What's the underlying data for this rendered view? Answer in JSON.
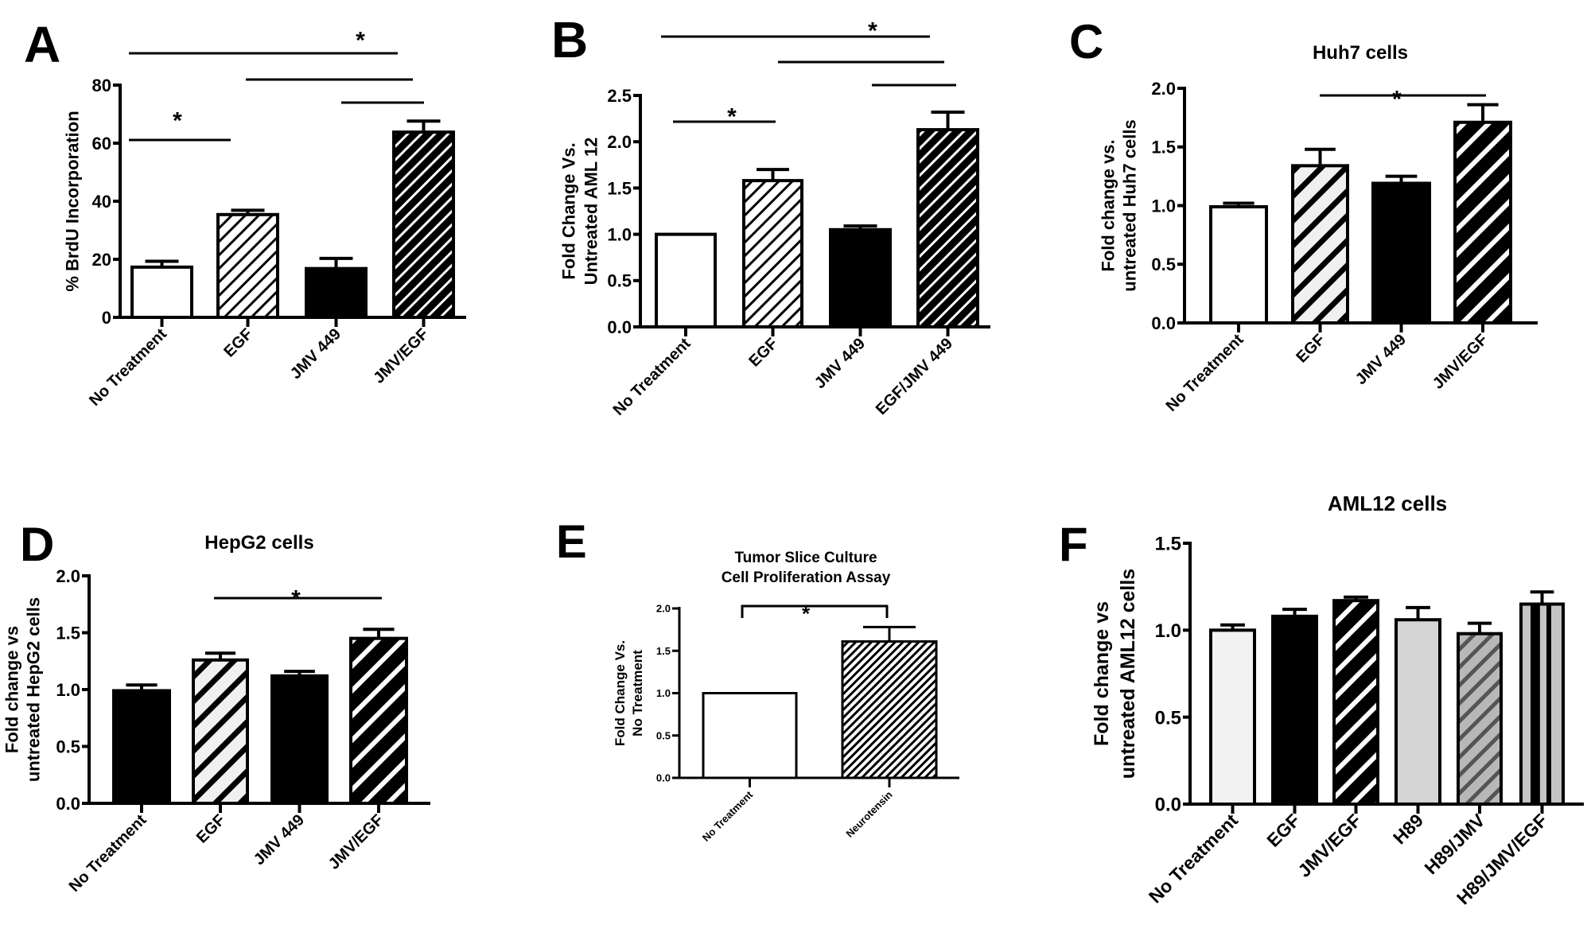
{
  "chart_data": [
    {
      "id": "A",
      "panel_label": "A",
      "type": "bar",
      "title": "",
      "ylabel": [
        "% BrdU Incorporation"
      ],
      "ylim": [
        0,
        80
      ],
      "yticks": [
        "0",
        "20",
        "40",
        "60",
        "80"
      ],
      "ytick_values": [
        0,
        20,
        40,
        60,
        80
      ],
      "categories": [
        "No Treatment",
        "EGF",
        "JMV 449",
        "JMV/EGF"
      ],
      "values": [
        17.3,
        35.4,
        16.8,
        63.8
      ],
      "errors_upper": [
        19.3,
        36.9,
        20.3,
        67.6
      ],
      "fills": [
        "white",
        "hatch-light",
        "black",
        "hatch-dark"
      ],
      "comparisons": [
        {
          "from": "No Treatment",
          "to": "JMV/EGF",
          "label": "*"
        },
        {
          "from": "EGF",
          "to": "JMV/EGF",
          "label": ""
        },
        {
          "from": "JMV 449",
          "to": "JMV/EGF",
          "label": ""
        },
        {
          "from": "No Treatment",
          "to": "EGF",
          "label": "*"
        }
      ]
    },
    {
      "id": "B",
      "panel_label": "B",
      "type": "bar",
      "title": "",
      "ylabel": [
        "Fold Change Vs.",
        "Untreated AML 12"
      ],
      "ylim": [
        0,
        2.5
      ],
      "yticks": [
        "0.0",
        "0.5",
        "1.0",
        "1.5",
        "2.0",
        "2.5"
      ],
      "ytick_values": [
        0,
        0.5,
        1,
        1.5,
        2,
        2.5
      ],
      "categories": [
        "No Treatment",
        "EGF",
        "JMV 449",
        "EGF/JMV 449"
      ],
      "values": [
        1.0,
        1.58,
        1.05,
        2.13
      ],
      "errors_upper": [
        1.0,
        1.7,
        1.09,
        2.32
      ],
      "fills": [
        "white",
        "hatch-light",
        "black",
        "hatch-dark"
      ],
      "comparisons": [
        {
          "from": "No Treatment",
          "to": "EGF/JMV 449",
          "label": "*"
        },
        {
          "from": "EGF",
          "to": "EGF/JMV 449",
          "label": ""
        },
        {
          "from": "JMV 449",
          "to": "EGF/JMV 449",
          "label": ""
        },
        {
          "from": "No Treatment",
          "to": "EGF",
          "label": "*"
        }
      ]
    },
    {
      "id": "C",
      "panel_label": "C",
      "type": "bar",
      "title": "Huh7 cells",
      "ylabel": [
        "Fold change vs.",
        "untreated Huh7 cells"
      ],
      "ylim": [
        0,
        2.0
      ],
      "yticks": [
        "0.0",
        "0.5",
        "1.0",
        "1.5",
        "2.0"
      ],
      "ytick_values": [
        0,
        0.5,
        1,
        1.5,
        2
      ],
      "categories": [
        "No Treatment",
        "EGF",
        "JMV 449",
        "JMV/EGF"
      ],
      "values": [
        0.99,
        1.34,
        1.19,
        1.71
      ],
      "errors_upper": [
        1.02,
        1.48,
        1.25,
        1.86
      ],
      "fills": [
        "white",
        "stripe-light",
        "black",
        "stripe-bold"
      ],
      "comparisons": [
        {
          "from": "EGF",
          "to": "JMV/EGF",
          "label": "*"
        }
      ]
    },
    {
      "id": "D",
      "panel_label": "D",
      "type": "bar",
      "title": "HepG2 cells",
      "ylabel": [
        "Fold change vs",
        "untreated HepG2 cells"
      ],
      "ylim": [
        0,
        2.0
      ],
      "yticks": [
        "0.0",
        "0.5",
        "1.0",
        "1.5",
        "2.0"
      ],
      "ytick_values": [
        0,
        0.5,
        1,
        1.5,
        2
      ],
      "categories": [
        "No Treatment",
        "EGF",
        "JMV 449",
        "JMV/EGF"
      ],
      "values": [
        0.99,
        1.26,
        1.12,
        1.45
      ],
      "errors_upper": [
        1.04,
        1.32,
        1.16,
        1.53
      ],
      "fills": [
        "black",
        "stripe-light",
        "black",
        "stripe-bold"
      ],
      "comparisons": [
        {
          "from": "EGF",
          "to": "JMV/EGF",
          "label": "*"
        }
      ]
    },
    {
      "id": "E",
      "panel_label": "E",
      "type": "bar",
      "title": [
        "Tumor Slice Culture",
        "Cell Proliferation Assay"
      ],
      "ylabel": [
        "Fold Change Vs.",
        "No Treatment"
      ],
      "ylim": [
        0,
        2.0
      ],
      "yticks": [
        "0.0",
        "0.5",
        "1.0",
        "1.5",
        "2.0"
      ],
      "ytick_values": [
        0,
        0.5,
        1,
        1.5,
        2
      ],
      "categories": [
        "No Treatment",
        "Neurotensin"
      ],
      "values": [
        1.0,
        1.61
      ],
      "errors_upper": [
        1.0,
        1.78
      ],
      "fills": [
        "white",
        "hatch-fine"
      ],
      "comparisons": [
        {
          "from": "No Treatment",
          "to": "Neurotensin",
          "label": "*"
        }
      ]
    },
    {
      "id": "F",
      "panel_label": "F",
      "type": "bar",
      "title": "AML12 cells",
      "ylabel": [
        "Fold change vs",
        "untreated AML12 cells"
      ],
      "ylim": [
        0,
        1.5
      ],
      "yticks": [
        "0.0",
        "0.5",
        "1.0",
        "1.5"
      ],
      "ytick_values": [
        0,
        0.5,
        1,
        1.5
      ],
      "categories": [
        "No Treatment",
        "EGF",
        "JMV/EGF",
        "H89",
        "H89/JMV",
        "H89/JMV/EGF"
      ],
      "values": [
        1.0,
        1.08,
        1.17,
        1.06,
        0.98,
        1.15
      ],
      "errors_upper": [
        1.03,
        1.12,
        1.19,
        1.13,
        1.04,
        1.22
      ],
      "fills": [
        "#f2f2f2",
        "black",
        "stripe-bold",
        "#d4d4d4",
        "hatch-gray",
        "vstripe-gray"
      ],
      "comparisons": []
    }
  ]
}
